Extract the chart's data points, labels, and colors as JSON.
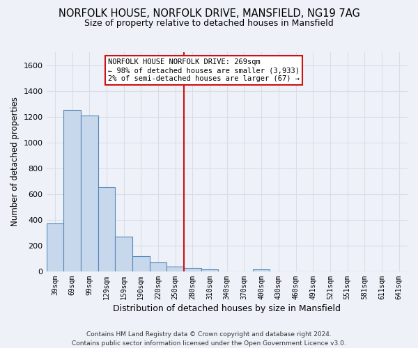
{
  "title": "NORFOLK HOUSE, NORFOLK DRIVE, MANSFIELD, NG19 7AG",
  "subtitle": "Size of property relative to detached houses in Mansfield",
  "xlabel": "Distribution of detached houses by size in Mansfield",
  "ylabel": "Number of detached properties",
  "categories": [
    "39sqm",
    "69sqm",
    "99sqm",
    "129sqm",
    "159sqm",
    "190sqm",
    "220sqm",
    "250sqm",
    "280sqm",
    "310sqm",
    "340sqm",
    "370sqm",
    "400sqm",
    "430sqm",
    "460sqm",
    "491sqm",
    "521sqm",
    "551sqm",
    "581sqm",
    "611sqm",
    "641sqm"
  ],
  "bar_vals": [
    370,
    1250,
    1210,
    655,
    270,
    120,
    70,
    35,
    28,
    18,
    0,
    0,
    14,
    0,
    0,
    0,
    0,
    0,
    0,
    0,
    0
  ],
  "bar_color": "#c8d8ec",
  "bar_edge_color": "#5588bb",
  "vline_color": "#cc1111",
  "annotation_text": "NORFOLK HOUSE NORFOLK DRIVE: 269sqm\n← 98% of detached houses are smaller (3,933)\n2% of semi-detached houses are larger (67) →",
  "ann_box_edge_color": "#cc1111",
  "ylim_max": 1700,
  "yticks": [
    0,
    200,
    400,
    600,
    800,
    1000,
    1200,
    1400,
    1600
  ],
  "bg_color": "#eef2f8",
  "grid_color": "#d8dde8",
  "footer": "Contains HM Land Registry data © Crown copyright and database right 2024.\nContains public sector information licensed under the Open Government Licence v3.0."
}
